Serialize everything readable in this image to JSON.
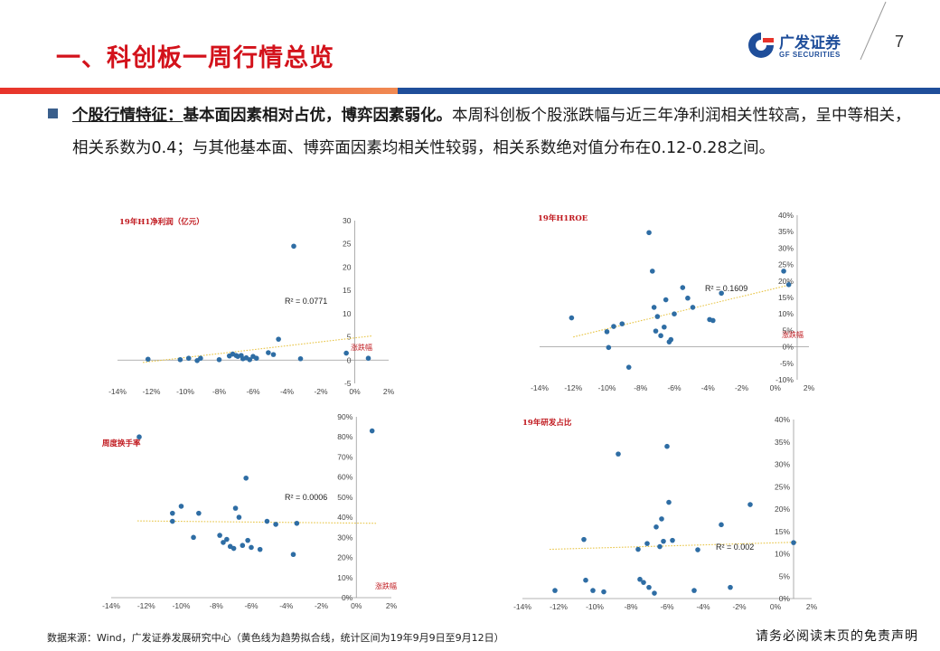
{
  "header": {
    "title": "一、科创板一周行情总览",
    "logo_cn": "广发证券",
    "logo_en": "GF SECURITIES",
    "page_number": "7"
  },
  "summary": {
    "lead": "个股行情特征：",
    "bold": "基本面因素相对占优，博弈因素弱化。",
    "body": "本周科创板个股涨跌幅与近三年净利润相关性较高，呈中等相关，相关系数为0.4；与其他基本面、博弈面因素均相关性较弱，相关系数绝对值分布在0.12-0.28之间。"
  },
  "footer": {
    "source": "数据来源：Wind，广发证券发展研究中心（黄色线为趋势拟合线，统计区间为19年9月9日至9月12日）",
    "disclaimer": "请务必阅读末页的免责声明"
  },
  "colors": {
    "point": "#2e6da4",
    "trend": "#e8c547",
    "title_red": "#d3121b",
    "brand_blue": "#1f4e9a"
  },
  "chart_data": [
    {
      "type": "scatter",
      "title": "19年H1净利润（亿元）",
      "xlabel": "涨跌幅",
      "r2_label": "R² = 0.0771",
      "xlim": [
        -14,
        2
      ],
      "ylim": [
        -5,
        30
      ],
      "x_ticks": [
        "-14%",
        "-12%",
        "-10%",
        "-8%",
        "-6%",
        "-4%",
        "-2%",
        "0%",
        "2%"
      ],
      "y_ticks": [
        "-5",
        "0",
        "5",
        "10",
        "15",
        "20",
        "25",
        "30"
      ],
      "points": [
        [
          -12.2,
          0.2
        ],
        [
          -10.3,
          0.1
        ],
        [
          -9.8,
          0.4
        ],
        [
          -9.3,
          -0.1
        ],
        [
          -9.1,
          0.4
        ],
        [
          -8.0,
          0.1
        ],
        [
          -7.4,
          0.9
        ],
        [
          -7.2,
          1.3
        ],
        [
          -7.0,
          1.0
        ],
        [
          -6.9,
          0.8
        ],
        [
          -6.7,
          1.0
        ],
        [
          -6.6,
          0.3
        ],
        [
          -6.4,
          0.5
        ],
        [
          -6.2,
          0.1
        ],
        [
          -6.0,
          0.8
        ],
        [
          -5.8,
          0.4
        ],
        [
          -5.1,
          1.6
        ],
        [
          -4.8,
          1.2
        ],
        [
          -4.5,
          4.5
        ],
        [
          -3.6,
          24.5
        ],
        [
          -3.2,
          0.3
        ],
        [
          -0.5,
          1.5
        ],
        [
          0.8,
          0.4
        ]
      ],
      "trend": [
        [
          -12.5,
          -0.5
        ],
        [
          1.0,
          5.2
        ]
      ]
    },
    {
      "type": "scatter",
      "title": "19年H1ROE",
      "xlabel": "涨跌幅",
      "r2_label": "R² = 0.1609",
      "xlim": [
        -14,
        2
      ],
      "ylim": [
        -10,
        40
      ],
      "x_ticks": [
        "-14%",
        "-12%",
        "-10%",
        "-8%",
        "-6%",
        "-4%",
        "-2%",
        "0%",
        "2%"
      ],
      "y_ticks": [
        "-10%",
        "-5%",
        "0%",
        "5%",
        "10%",
        "15%",
        "20%",
        "25%",
        "30%",
        "35%",
        "40%"
      ],
      "points": [
        [
          -12.1,
          8.8
        ],
        [
          -10.0,
          4.6
        ],
        [
          -9.9,
          -0.2
        ],
        [
          -9.6,
          6.2
        ],
        [
          -9.1,
          7.0
        ],
        [
          -8.7,
          -6.2
        ],
        [
          -7.5,
          34.7
        ],
        [
          -7.3,
          23.0
        ],
        [
          -7.2,
          12.0
        ],
        [
          -7.1,
          4.8
        ],
        [
          -7.0,
          9.2
        ],
        [
          -6.8,
          3.4
        ],
        [
          -6.6,
          6.0
        ],
        [
          -6.5,
          14.3
        ],
        [
          -6.3,
          1.5
        ],
        [
          -6.2,
          2.2
        ],
        [
          -6.0,
          10.0
        ],
        [
          -5.5,
          18.0
        ],
        [
          -5.2,
          14.8
        ],
        [
          -4.9,
          12.0
        ],
        [
          -3.9,
          8.3
        ],
        [
          -3.7,
          8.0
        ],
        [
          -3.2,
          16.3
        ],
        [
          0.5,
          23.0
        ],
        [
          0.8,
          18.9
        ]
      ],
      "trend": [
        [
          -12.0,
          3.0
        ],
        [
          1.0,
          19.0
        ]
      ]
    },
    {
      "type": "scatter",
      "title": "周度换手率",
      "xlabel": "涨跌幅",
      "r2_label": "R² = 0.0006",
      "xlim": [
        -14,
        2
      ],
      "ylim": [
        0,
        90
      ],
      "x_ticks": [
        "-14%",
        "-12%",
        "-10%",
        "-8%",
        "-6%",
        "-4%",
        "-2%",
        "0%",
        "2%"
      ],
      "y_ticks": [
        "0%",
        "10%",
        "20%",
        "30%",
        "40%",
        "50%",
        "60%",
        "70%",
        "80%",
        "90%"
      ],
      "points": [
        [
          -12.4,
          80.0
        ],
        [
          -10.5,
          42.0
        ],
        [
          -10.5,
          38.0
        ],
        [
          -10.0,
          45.5
        ],
        [
          -9.3,
          30.0
        ],
        [
          -9.0,
          42.0
        ],
        [
          -7.8,
          31.0
        ],
        [
          -7.6,
          27.5
        ],
        [
          -7.4,
          29.0
        ],
        [
          -7.2,
          25.5
        ],
        [
          -7.0,
          24.5
        ],
        [
          -6.9,
          44.5
        ],
        [
          -6.7,
          40.0
        ],
        [
          -6.5,
          26.0
        ],
        [
          -6.3,
          59.5
        ],
        [
          -6.2,
          28.5
        ],
        [
          -6.0,
          25.0
        ],
        [
          -5.5,
          24.0
        ],
        [
          -5.1,
          38.0
        ],
        [
          -4.6,
          36.5
        ],
        [
          -3.6,
          21.5
        ],
        [
          -3.4,
          37.0
        ],
        [
          0.9,
          83.0
        ]
      ],
      "trend": [
        [
          -12.5,
          38.2
        ],
        [
          1.2,
          37.0
        ]
      ]
    },
    {
      "type": "scatter",
      "title": "19年研发占比",
      "xlabel": "",
      "r2_label": "R² = 0.002",
      "xlim": [
        -14,
        2
      ],
      "ylim": [
        0,
        40
      ],
      "x_ticks": [
        "-14%",
        "-12%",
        "-10%",
        "-8%",
        "-6%",
        "-4%",
        "-2%",
        "0%",
        "2%"
      ],
      "y_ticks": [
        "0%",
        "5%",
        "10%",
        "15%",
        "20%",
        "25%",
        "30%",
        "35%",
        "40%"
      ],
      "points": [
        [
          -12.2,
          1.8
        ],
        [
          -10.6,
          13.2
        ],
        [
          -10.5,
          4.1
        ],
        [
          -10.1,
          1.8
        ],
        [
          -9.5,
          1.5
        ],
        [
          -8.7,
          32.3
        ],
        [
          -7.6,
          11.0
        ],
        [
          -7.5,
          4.3
        ],
        [
          -7.3,
          3.6
        ],
        [
          -7.1,
          12.3
        ],
        [
          -7.0,
          2.5
        ],
        [
          -6.7,
          1.2
        ],
        [
          -6.6,
          16.0
        ],
        [
          -6.4,
          11.6
        ],
        [
          -6.3,
          17.8
        ],
        [
          -6.2,
          12.8
        ],
        [
          -6.0,
          34.0
        ],
        [
          -5.9,
          21.5
        ],
        [
          -5.7,
          13.0
        ],
        [
          -4.5,
          1.8
        ],
        [
          -4.3,
          10.9
        ],
        [
          -3.0,
          16.5
        ],
        [
          -2.5,
          2.5
        ],
        [
          -1.4,
          21.0
        ],
        [
          1.0,
          12.5
        ]
      ],
      "trend": [
        [
          -12.5,
          11.0
        ],
        [
          1.2,
          12.6
        ]
      ]
    }
  ]
}
